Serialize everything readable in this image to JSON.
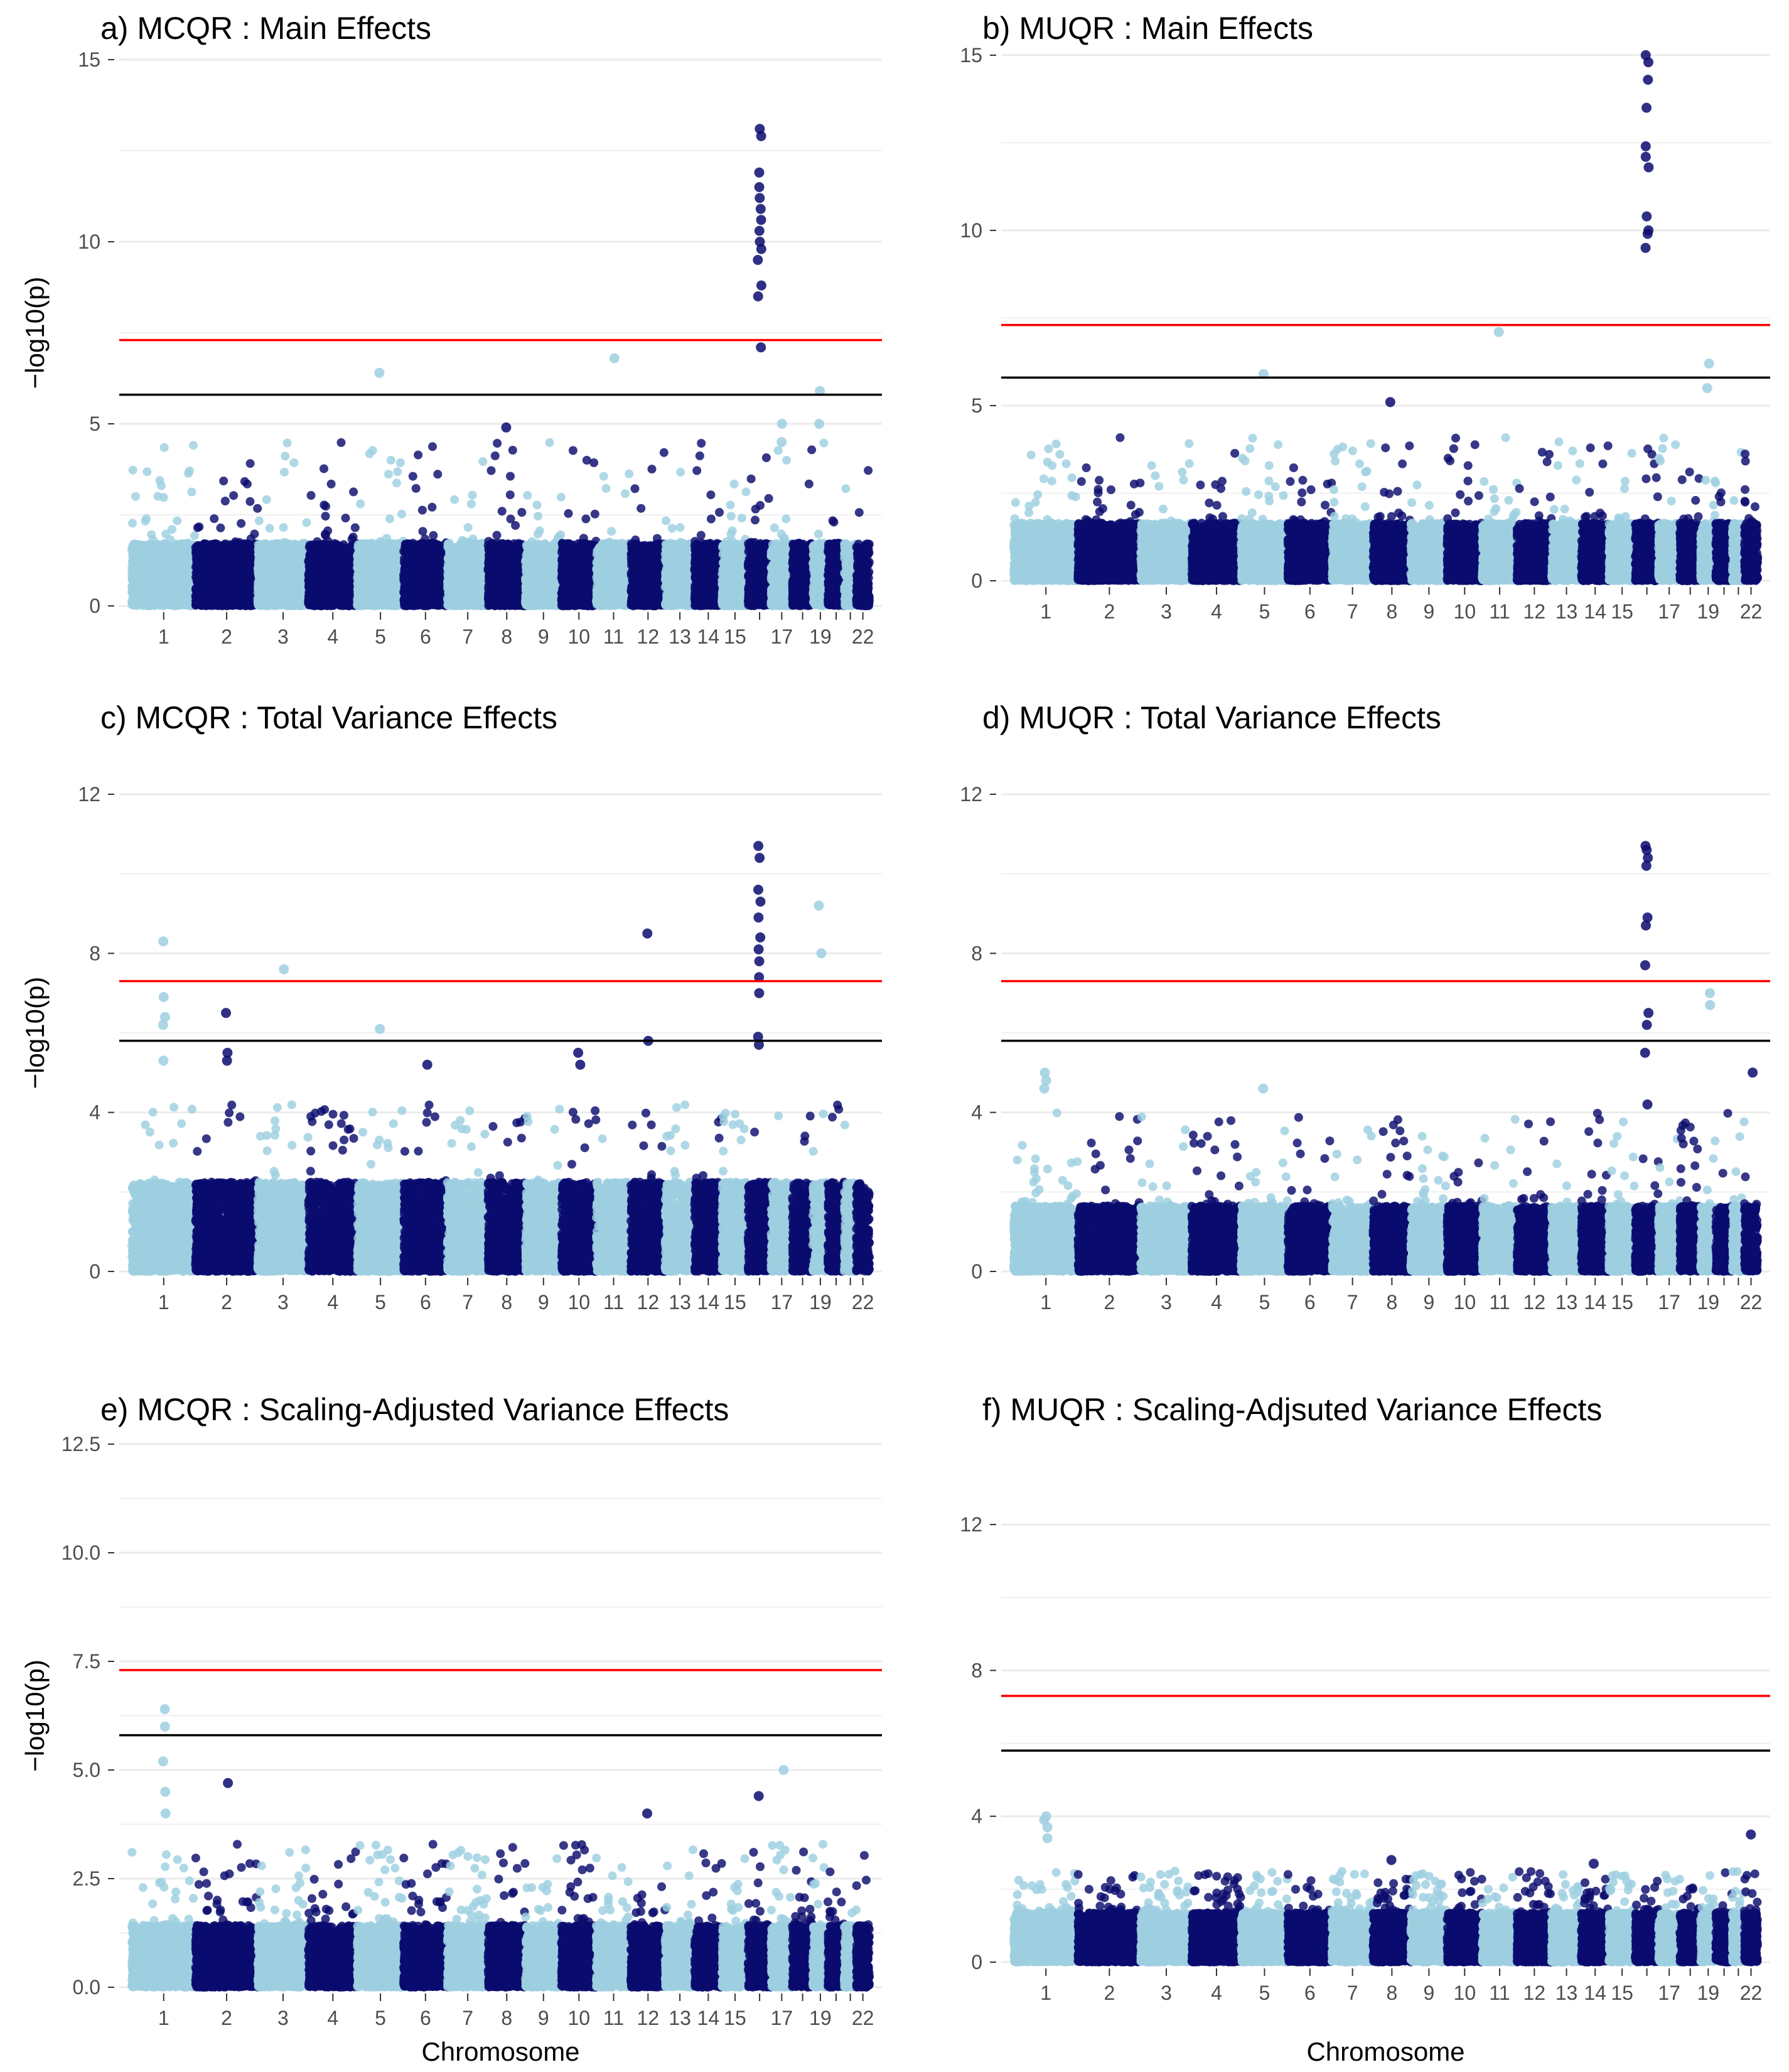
{
  "colors": {
    "light_points": "#9ecfe0",
    "dark_points": "#0b0c6e",
    "genomewide_line": "#ff0000",
    "suggestive_line": "#000000",
    "grid": "#ebebeb"
  },
  "chart_data": [
    {
      "type": "scatter",
      "title": "a) MCQR : Main Effects",
      "xlabel": "",
      "ylabel": "−log10(p)",
      "ylim": [
        0,
        15
      ],
      "yticks": [
        "0",
        "5",
        "10",
        "15"
      ],
      "ytick_values": [
        0,
        5,
        10,
        15
      ],
      "x_tick_labels": [
        "1",
        "2",
        "3",
        "4",
        "5",
        "6",
        "7",
        "8",
        "9",
        "10",
        "11",
        "12",
        "13",
        "14",
        "15",
        "",
        "17",
        "",
        "19",
        "",
        "",
        "22"
      ],
      "thresholds": [
        7.3,
        5.8
      ],
      "peak_points": [
        {
          "chr": 16,
          "y": [
            13.1,
            12.9,
            11.9,
            11.5,
            11.2,
            10.9,
            10.6,
            10.3,
            10.0,
            9.8,
            9.5,
            8.8,
            8.5,
            7.1
          ]
        },
        {
          "chr": 5,
          "y": [
            6.4
          ]
        },
        {
          "chr": 11,
          "y": [
            6.8
          ]
        },
        {
          "chr": 19,
          "y": [
            5.9,
            5.0
          ]
        },
        {
          "chr": 8,
          "y": [
            4.9
          ]
        },
        {
          "chr": 17,
          "y": [
            5.0,
            4.5
          ]
        }
      ]
    },
    {
      "type": "scatter",
      "title": "b) MUQR : Main Effects",
      "xlabel": "",
      "ylabel": "",
      "ylim": [
        0,
        15.5
      ],
      "yticks": [
        "0",
        "5",
        "10",
        "15"
      ],
      "ytick_values": [
        0,
        5,
        10,
        15
      ],
      "x_tick_labels": [
        "1",
        "2",
        "3",
        "4",
        "5",
        "6",
        "7",
        "8",
        "9",
        "10",
        "11",
        "12",
        "13",
        "14",
        "15",
        "",
        "17",
        "",
        "19",
        "",
        "",
        "22"
      ],
      "thresholds": [
        7.3,
        5.8
      ],
      "peak_points": [
        {
          "chr": 16,
          "y": [
            15.0,
            14.8,
            14.3,
            13.5,
            12.4,
            12.1,
            11.8,
            10.4,
            10.0,
            9.9,
            9.5
          ]
        },
        {
          "chr": 11,
          "y": [
            7.1
          ]
        },
        {
          "chr": 5,
          "y": [
            5.9
          ]
        },
        {
          "chr": 19,
          "y": [
            6.2,
            5.5
          ]
        },
        {
          "chr": 8,
          "y": [
            5.1
          ]
        }
      ]
    },
    {
      "type": "scatter",
      "title": "c) MCQR : Total Variance Effects",
      "xlabel": "",
      "ylabel": "−log10(p)",
      "ylim": [
        0,
        12
      ],
      "yticks": [
        "0",
        "4",
        "8",
        "12"
      ],
      "ytick_values": [
        0,
        4,
        8,
        12
      ],
      "x_tick_labels": [
        "1",
        "2",
        "3",
        "4",
        "5",
        "6",
        "7",
        "8",
        "9",
        "10",
        "11",
        "12",
        "13",
        "14",
        "15",
        "",
        "17",
        "",
        "19",
        "",
        "",
        "22"
      ],
      "thresholds": [
        7.3,
        5.8
      ],
      "peak_points": [
        {
          "chr": 16,
          "y": [
            10.7,
            10.4,
            9.6,
            9.3,
            8.9,
            8.4,
            8.1,
            7.8,
            7.4,
            7.0,
            5.9,
            5.7
          ]
        },
        {
          "chr": 1,
          "y": [
            8.3,
            6.9,
            6.4,
            6.2,
            5.3
          ]
        },
        {
          "chr": 3,
          "y": [
            7.6
          ]
        },
        {
          "chr": 12,
          "y": [
            8.5,
            5.8
          ]
        },
        {
          "chr": 19,
          "y": [
            9.2,
            8.0
          ]
        },
        {
          "chr": 2,
          "y": [
            6.5,
            5.5,
            5.3
          ]
        },
        {
          "chr": 5,
          "y": [
            6.1
          ]
        },
        {
          "chr": 6,
          "y": [
            5.2
          ]
        },
        {
          "chr": 10,
          "y": [
            5.5,
            5.2
          ]
        }
      ]
    },
    {
      "type": "scatter",
      "title": "d) MUQR : Total Variance Effects",
      "xlabel": "",
      "ylabel": "",
      "ylim": [
        0,
        12
      ],
      "yticks": [
        "0",
        "4",
        "8",
        "12"
      ],
      "ytick_values": [
        0,
        4,
        8,
        12
      ],
      "x_tick_labels": [
        "1",
        "2",
        "3",
        "4",
        "5",
        "6",
        "7",
        "8",
        "9",
        "10",
        "11",
        "12",
        "13",
        "14",
        "15",
        "",
        "17",
        "",
        "19",
        "",
        "",
        "22"
      ],
      "thresholds": [
        7.3,
        5.8
      ],
      "peak_points": [
        {
          "chr": 16,
          "y": [
            10.7,
            10.6,
            10.4,
            10.2,
            8.9,
            8.7,
            7.7,
            6.5,
            6.2,
            5.5,
            4.2
          ]
        },
        {
          "chr": 19,
          "y": [
            7.0,
            6.7
          ]
        },
        {
          "chr": 1,
          "y": [
            5.0,
            4.8,
            4.6
          ]
        },
        {
          "chr": 5,
          "y": [
            4.6
          ]
        },
        {
          "chr": 22,
          "y": [
            5.0
          ]
        }
      ]
    },
    {
      "type": "scatter",
      "title": "e) MCQR : Scaling-Adjusted Variance Effects",
      "xlabel": "Chromosome",
      "ylabel": "−log10(p)",
      "ylim": [
        0,
        12.5
      ],
      "yticks": [
        "0.0",
        "2.5",
        "5.0",
        "7.5",
        "10.0",
        "12.5"
      ],
      "ytick_values": [
        0,
        2.5,
        5,
        7.5,
        10,
        12.5
      ],
      "x_tick_labels": [
        "1",
        "2",
        "3",
        "4",
        "5",
        "6",
        "7",
        "8",
        "9",
        "10",
        "11",
        "12",
        "13",
        "14",
        "15",
        "",
        "17",
        "",
        "19",
        "",
        "",
        "22"
      ],
      "thresholds": [
        7.3,
        5.8
      ],
      "peak_points": [
        {
          "chr": 1,
          "y": [
            6.4,
            6.0,
            5.2,
            4.5,
            4.0
          ]
        },
        {
          "chr": 2,
          "y": [
            4.7
          ]
        },
        {
          "chr": 17,
          "y": [
            5.0
          ]
        },
        {
          "chr": 16,
          "y": [
            4.4
          ]
        },
        {
          "chr": 12,
          "y": [
            4.0
          ]
        }
      ]
    },
    {
      "type": "scatter",
      "title": "f) MUQR : Scaling-Adjsuted Variance Effects",
      "xlabel": "Chromosome",
      "ylabel": "",
      "ylim": [
        0,
        13
      ],
      "yticks": [
        "0",
        "4",
        "8",
        "12"
      ],
      "ytick_values": [
        0,
        4,
        8,
        12
      ],
      "x_tick_labels": [
        "1",
        "2",
        "3",
        "4",
        "5",
        "6",
        "7",
        "8",
        "9",
        "10",
        "11",
        "12",
        "13",
        "14",
        "15",
        "",
        "17",
        "",
        "19",
        "",
        "",
        "22"
      ],
      "thresholds": [
        7.3,
        5.8
      ],
      "peak_points": [
        {
          "chr": 1,
          "y": [
            4.0,
            3.9,
            3.7,
            3.4
          ]
        },
        {
          "chr": 22,
          "y": [
            3.5
          ]
        },
        {
          "chr": 8,
          "y": [
            2.8
          ]
        },
        {
          "chr": 14,
          "y": [
            2.7
          ]
        }
      ]
    }
  ]
}
